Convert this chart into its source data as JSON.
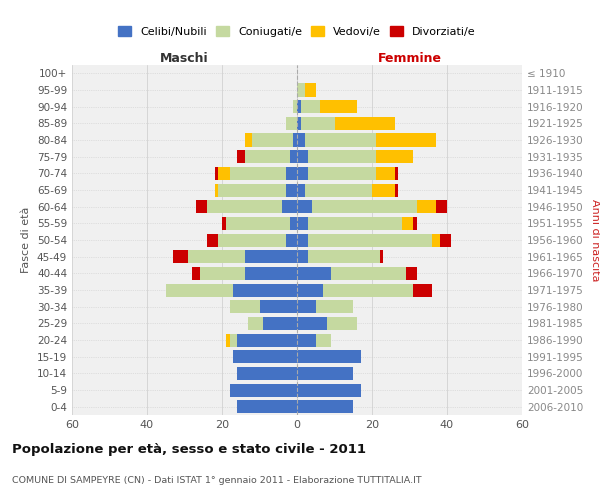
{
  "age_groups": [
    "0-4",
    "5-9",
    "10-14",
    "15-19",
    "20-24",
    "25-29",
    "30-34",
    "35-39",
    "40-44",
    "45-49",
    "50-54",
    "55-59",
    "60-64",
    "65-69",
    "70-74",
    "75-79",
    "80-84",
    "85-89",
    "90-94",
    "95-99",
    "100+"
  ],
  "birth_years": [
    "2006-2010",
    "2001-2005",
    "1996-2000",
    "1991-1995",
    "1986-1990",
    "1981-1985",
    "1976-1980",
    "1971-1975",
    "1966-1970",
    "1961-1965",
    "1956-1960",
    "1951-1955",
    "1946-1950",
    "1941-1945",
    "1936-1940",
    "1931-1935",
    "1926-1930",
    "1921-1925",
    "1916-1920",
    "1911-1915",
    "≤ 1910"
  ],
  "male": {
    "celibi": [
      16,
      18,
      16,
      17,
      16,
      9,
      10,
      17,
      14,
      14,
      3,
      2,
      4,
      3,
      3,
      2,
      1,
      0,
      0,
      0,
      0
    ],
    "coniugati": [
      0,
      0,
      0,
      0,
      2,
      4,
      8,
      18,
      12,
      15,
      18,
      17,
      20,
      18,
      15,
      12,
      11,
      3,
      1,
      0,
      0
    ],
    "vedovi": [
      0,
      0,
      0,
      0,
      1,
      0,
      0,
      0,
      0,
      0,
      0,
      0,
      0,
      1,
      3,
      0,
      2,
      0,
      0,
      0,
      0
    ],
    "divorziati": [
      0,
      0,
      0,
      0,
      0,
      0,
      0,
      0,
      2,
      4,
      3,
      1,
      3,
      0,
      1,
      2,
      0,
      0,
      0,
      0,
      0
    ]
  },
  "female": {
    "nubili": [
      15,
      17,
      15,
      17,
      5,
      8,
      5,
      7,
      9,
      3,
      3,
      3,
      4,
      2,
      3,
      3,
      2,
      1,
      1,
      0,
      0
    ],
    "coniugate": [
      0,
      0,
      0,
      0,
      4,
      8,
      10,
      24,
      20,
      19,
      33,
      25,
      28,
      18,
      18,
      18,
      19,
      9,
      5,
      2,
      0
    ],
    "vedove": [
      0,
      0,
      0,
      0,
      0,
      0,
      0,
      0,
      0,
      0,
      2,
      3,
      5,
      6,
      5,
      10,
      16,
      16,
      10,
      3,
      0
    ],
    "divorziate": [
      0,
      0,
      0,
      0,
      0,
      0,
      0,
      5,
      3,
      1,
      3,
      1,
      3,
      1,
      1,
      0,
      0,
      0,
      0,
      0,
      0
    ]
  },
  "colors": {
    "celibi": "#4472c4",
    "coniugati": "#c5d9a0",
    "vedovi": "#ffc000",
    "divorziati": "#cc0000"
  },
  "xlim": 60,
  "title": "Popolazione per età, sesso e stato civile - 2011",
  "subtitle": "COMUNE DI SAMPEYRE (CN) - Dati ISTAT 1° gennaio 2011 - Elaborazione TUTTITALIA.IT",
  "ylabel": "Fasce di età",
  "right_ylabel": "Anni di nascita",
  "bg_color": "#ffffff",
  "grid_color": "#cccccc"
}
